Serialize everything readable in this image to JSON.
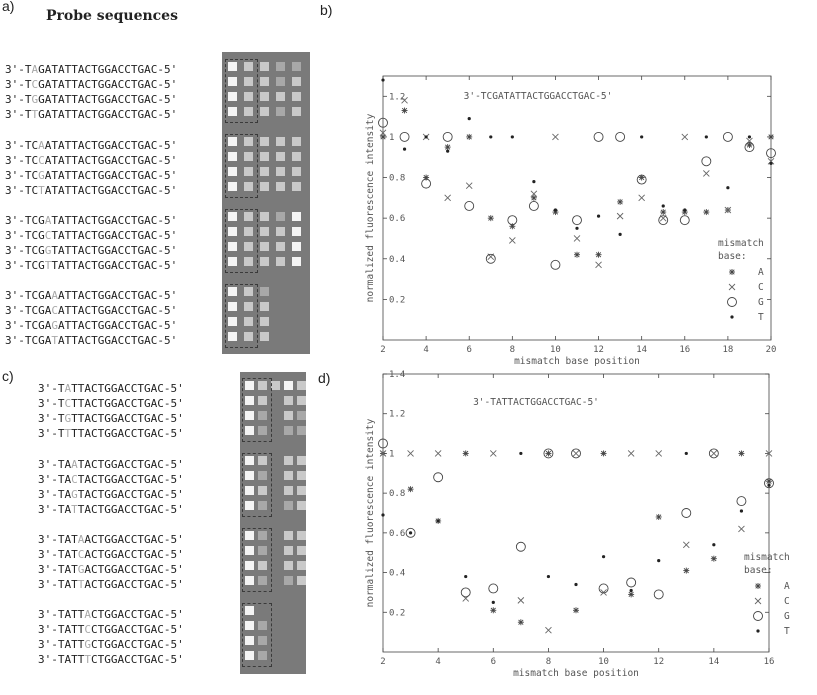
{
  "labels": {
    "a": "a)",
    "b": "b)",
    "c": "c)",
    "d": "d)"
  },
  "heading": "Probe sequences",
  "colors": {
    "array_bg": "#7a7a7a",
    "spot_bright": "#f4f4f4",
    "spot_mid": "#c9c9c9",
    "spot_dim": "#a8a8a8",
    "mismatch_text": "#a8a8a8"
  },
  "panel_a": {
    "sequences": [
      "3'-TAGATATTACTGGACCTGAC-5'",
      "3'-TCGATATTACTGGACCTGAC-5'",
      "3'-TGGATATTACTGGACCTGAC-5'",
      "3'-TTGATATTACTGGACCTGAC-5'",
      "3'-TCAATATTACTGGACCTGAC-5'",
      "3'-TCCATATTACTGGACCTGAC-5'",
      "3'-TCGATATTACTGGACCTGAC-5'",
      "3'-TCTATATTACTGGACCTGAC-5'",
      "3'-TCGATATTACTGGACCTGAC-5'",
      "3'-TCGCTATTACTGGACCTGAC-5'",
      "3'-TCGGTATTACTGGACCTGAC-5'",
      "3'-TCGTTATTACTGGACCTGAC-5'",
      "3'-TCGAAATTACTGGACCTGAC-5'",
      "3'-TCGACATTACTGGACCTGAC-5'",
      "3'-TCGAGATTACTGGACCTGAC-5'",
      "3'-TCGATATTACTGGACCTGAC-5'"
    ],
    "mismatch_index": [
      4,
      4,
      4,
      4,
      5,
      5,
      5,
      5,
      6,
      6,
      6,
      6,
      7,
      7,
      7,
      7
    ],
    "spots": [
      [
        3,
        2,
        2,
        1,
        1
      ],
      [
        3,
        2,
        2,
        1,
        2
      ],
      [
        3,
        2,
        2,
        2,
        2
      ],
      [
        3,
        2,
        2,
        1,
        2
      ],
      [
        3,
        2,
        2,
        2,
        2
      ],
      [
        3,
        2,
        2,
        2,
        2
      ],
      [
        3,
        2,
        2,
        2,
        2
      ],
      [
        3,
        2,
        2,
        2,
        2
      ],
      [
        3,
        2,
        2,
        1,
        3
      ],
      [
        3,
        2,
        2,
        2,
        3
      ],
      [
        3,
        2,
        2,
        2,
        3
      ],
      [
        3,
        2,
        2,
        2,
        3
      ],
      [
        3,
        2,
        1,
        0,
        0
      ],
      [
        3,
        2,
        2,
        0,
        0
      ],
      [
        3,
        2,
        2,
        0,
        0
      ],
      [
        3,
        2,
        2,
        0,
        0
      ]
    ]
  },
  "panel_c": {
    "sequences": [
      "3'-TATTACTGGACCTGAC-5'",
      "3'-TCTTACTGGACCTGAC-5'",
      "3'-TGTTACTGGACCTGAC-5'",
      "3'-TTTTACTGGACCTGAC-5'",
      "3'-TAATACTGGACCTGAC-5'",
      "3'-TACTACTGGACCTGAC-5'",
      "3'-TAGTACTGGACCTGAC-5'",
      "3'-TATTACTGGACCTGAC-5'",
      "3'-TATAACTGGACCTGAC-5'",
      "3'-TATCACTGGACCTGAC-5'",
      "3'-TATGACTGGACCTGAC-5'",
      "3'-TATTACTGGACCTGAC-5'",
      "3'-TATTACTGGACCTGAC-5'",
      "3'-TATTCCTGGACCTGAC-5'",
      "3'-TATTGCTGGACCTGAC-5'",
      "3'-TATTTCTGGACCTGAC-5'"
    ],
    "mismatch_index": [
      4,
      4,
      4,
      4,
      5,
      5,
      5,
      5,
      6,
      6,
      6,
      6,
      7,
      7,
      7,
      7
    ],
    "spots": [
      [
        3,
        2,
        2,
        3,
        2
      ],
      [
        3,
        2,
        0,
        2,
        2
      ],
      [
        3,
        1,
        0,
        2,
        1
      ],
      [
        3,
        1,
        0,
        1,
        1
      ],
      [
        3,
        2,
        0,
        2,
        2
      ],
      [
        3,
        1,
        0,
        2,
        2
      ],
      [
        3,
        2,
        0,
        2,
        2
      ],
      [
        3,
        1,
        0,
        1,
        2
      ],
      [
        3,
        1,
        0,
        2,
        2
      ],
      [
        3,
        1,
        0,
        2,
        2
      ],
      [
        3,
        2,
        0,
        2,
        2
      ],
      [
        3,
        1,
        0,
        1,
        2
      ],
      [
        3,
        0,
        0,
        0,
        0
      ],
      [
        3,
        1,
        0,
        0,
        0
      ],
      [
        3,
        1,
        0,
        0,
        0
      ],
      [
        3,
        1,
        0,
        0,
        0
      ]
    ]
  },
  "chart_data": [
    {
      "type": "scatter",
      "panel": "b",
      "title": "3'-TCGATATTACTGGACCTGAC-5'",
      "xlabel": "mismatch base position",
      "ylabel": "normalized fluorescence intensity",
      "xlim": [
        2,
        20
      ],
      "ylim": [
        0,
        1.3
      ],
      "xticks": [
        2,
        4,
        6,
        8,
        10,
        12,
        14,
        16,
        18,
        20
      ],
      "yticks": [
        0.2,
        0.4,
        0.6,
        0.8,
        1,
        1.2
      ],
      "ytick_labels": [
        "0.2",
        "0.4",
        "0.6",
        "0.8",
        "1",
        "1.2"
      ],
      "legend": {
        "title": "mismatch base:",
        "position": "right"
      },
      "series": [
        {
          "name": "A",
          "marker": "star",
          "x": [
            2,
            3,
            4,
            5,
            6,
            7,
            8,
            9,
            10,
            11,
            12,
            13,
            14,
            15,
            16,
            17,
            18,
            19,
            20
          ],
          "y": [
            1,
            1.13,
            0.8,
            0.95,
            1,
            0.6,
            0.56,
            0.7,
            0.63,
            0.42,
            0.42,
            0.68,
            0.8,
            0.63,
            0.63,
            0.63,
            0.64,
            0.96,
            1
          ]
        },
        {
          "name": "C",
          "marker": "x",
          "x": [
            2,
            3,
            4,
            5,
            6,
            7,
            8,
            9,
            10,
            11,
            12,
            13,
            14,
            15,
            16,
            17,
            18,
            19,
            20
          ],
          "y": [
            1.02,
            1.18,
            1,
            0.7,
            0.76,
            0.41,
            0.49,
            0.72,
            1,
            0.5,
            0.37,
            0.61,
            0.7,
            0.6,
            1,
            0.82,
            0.64,
            0.98,
            0.88
          ]
        },
        {
          "name": "G",
          "marker": "circle",
          "x": [
            2,
            3,
            4,
            5,
            6,
            7,
            8,
            9,
            10,
            11,
            12,
            13,
            14,
            15,
            16,
            17,
            18,
            19,
            20
          ],
          "y": [
            1.07,
            1,
            0.77,
            1,
            0.66,
            0.4,
            0.59,
            0.66,
            0.37,
            0.59,
            1,
            1,
            0.79,
            0.59,
            0.59,
            0.88,
            1,
            0.95,
            0.92
          ]
        },
        {
          "name": "T",
          "marker": "dot",
          "x": [
            2,
            3,
            4,
            5,
            6,
            7,
            8,
            9,
            10,
            11,
            12,
            13,
            14,
            15,
            16,
            17,
            18,
            19,
            20
          ],
          "y": [
            1.28,
            0.94,
            1,
            0.93,
            1.09,
            1,
            1,
            0.78,
            0.64,
            0.55,
            0.61,
            0.52,
            1,
            0.66,
            0.64,
            1,
            0.75,
            1,
            0.87
          ]
        }
      ]
    },
    {
      "type": "scatter",
      "panel": "d",
      "title": "3'-TATTACTGGACCTGAC-5'",
      "xlabel": "mismatch base position",
      "ylabel": "normalized fluorescence intensity",
      "xlim": [
        2,
        16
      ],
      "ylim": [
        0,
        1.4
      ],
      "xticks": [
        2,
        4,
        6,
        8,
        10,
        12,
        14,
        16
      ],
      "yticks": [
        0.2,
        0.4,
        0.6,
        0.8,
        1,
        1.2,
        1.4
      ],
      "ytick_labels": [
        "0.2",
        "0.4",
        "0.6",
        "0.8",
        "1",
        "1.2",
        "1.4"
      ],
      "legend": {
        "title": "mismatch base:",
        "position": "right"
      },
      "series": [
        {
          "name": "A",
          "marker": "star",
          "x": [
            2,
            3,
            4,
            5,
            6,
            7,
            8,
            9,
            10,
            11,
            12,
            13,
            14,
            15,
            16
          ],
          "y": [
            1,
            0.82,
            0.66,
            1,
            0.21,
            0.15,
            1,
            0.21,
            1,
            0.29,
            0.68,
            0.41,
            0.47,
            1,
            0.86
          ]
        },
        {
          "name": "C",
          "marker": "x",
          "x": [
            2,
            3,
            4,
            5,
            6,
            7,
            8,
            9,
            10,
            11,
            12,
            13,
            14,
            15,
            16
          ],
          "y": [
            1,
            1,
            1,
            0.27,
            1,
            0.26,
            0.11,
            1,
            0.3,
            1,
            1,
            0.54,
            1,
            0.62,
            1
          ]
        },
        {
          "name": "G",
          "marker": "circle",
          "x": [
            2,
            3,
            4,
            5,
            6,
            7,
            8,
            9,
            10,
            11,
            12,
            13,
            14,
            15,
            16
          ],
          "y": [
            1.05,
            0.6,
            0.88,
            0.3,
            0.32,
            0.53,
            1,
            1,
            0.32,
            0.35,
            0.29,
            0.7,
            1,
            0.76,
            0.85
          ]
        },
        {
          "name": "T",
          "marker": "dot",
          "x": [
            2,
            3,
            4,
            5,
            6,
            7,
            8,
            9,
            10,
            11,
            12,
            13,
            14,
            15,
            16
          ],
          "y": [
            0.69,
            0.6,
            0.66,
            0.38,
            0.25,
            1,
            0.38,
            0.34,
            0.48,
            0.31,
            0.46,
            1,
            0.54,
            0.71,
            0.84
          ]
        }
      ]
    }
  ]
}
